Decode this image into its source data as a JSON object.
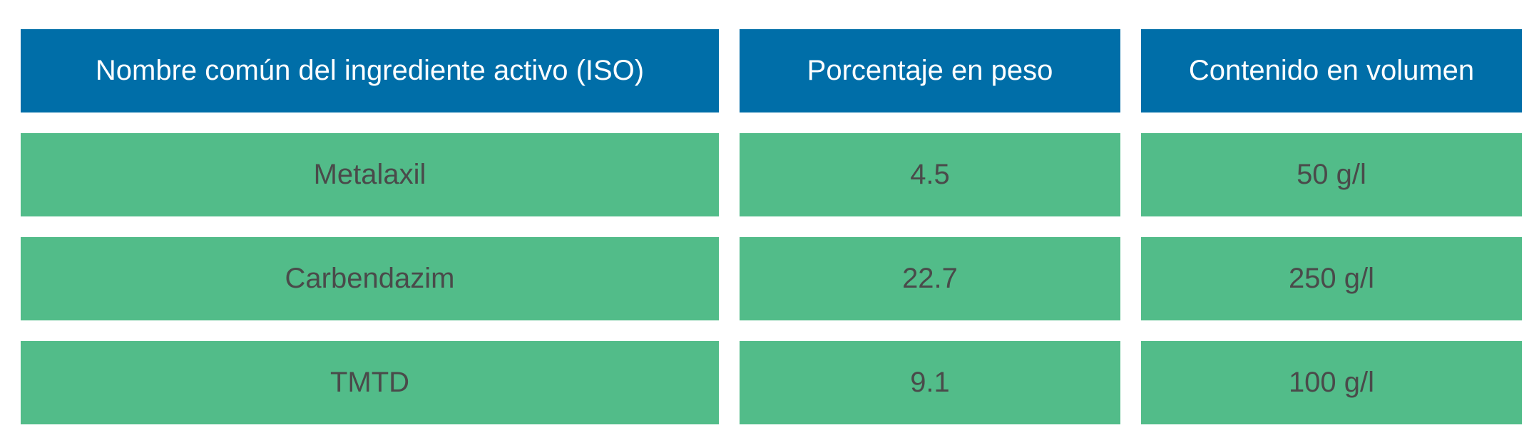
{
  "table": {
    "headers": [
      "Nombre común del ingrediente activo (ISO)",
      "Porcentaje en peso",
      "Contenido en volumen"
    ],
    "rows": [
      [
        "Metalaxil",
        "4.5",
        "50 g/l"
      ],
      [
        "Carbendazim",
        "22.7",
        "250 g/l"
      ],
      [
        "TMTD",
        "9.1",
        "100 g/l"
      ]
    ]
  },
  "colors": {
    "header_bg": "#006ea8",
    "header_text": "#ffffff",
    "row_bg": "#52bc89",
    "row_text": "#4a4a4a"
  }
}
